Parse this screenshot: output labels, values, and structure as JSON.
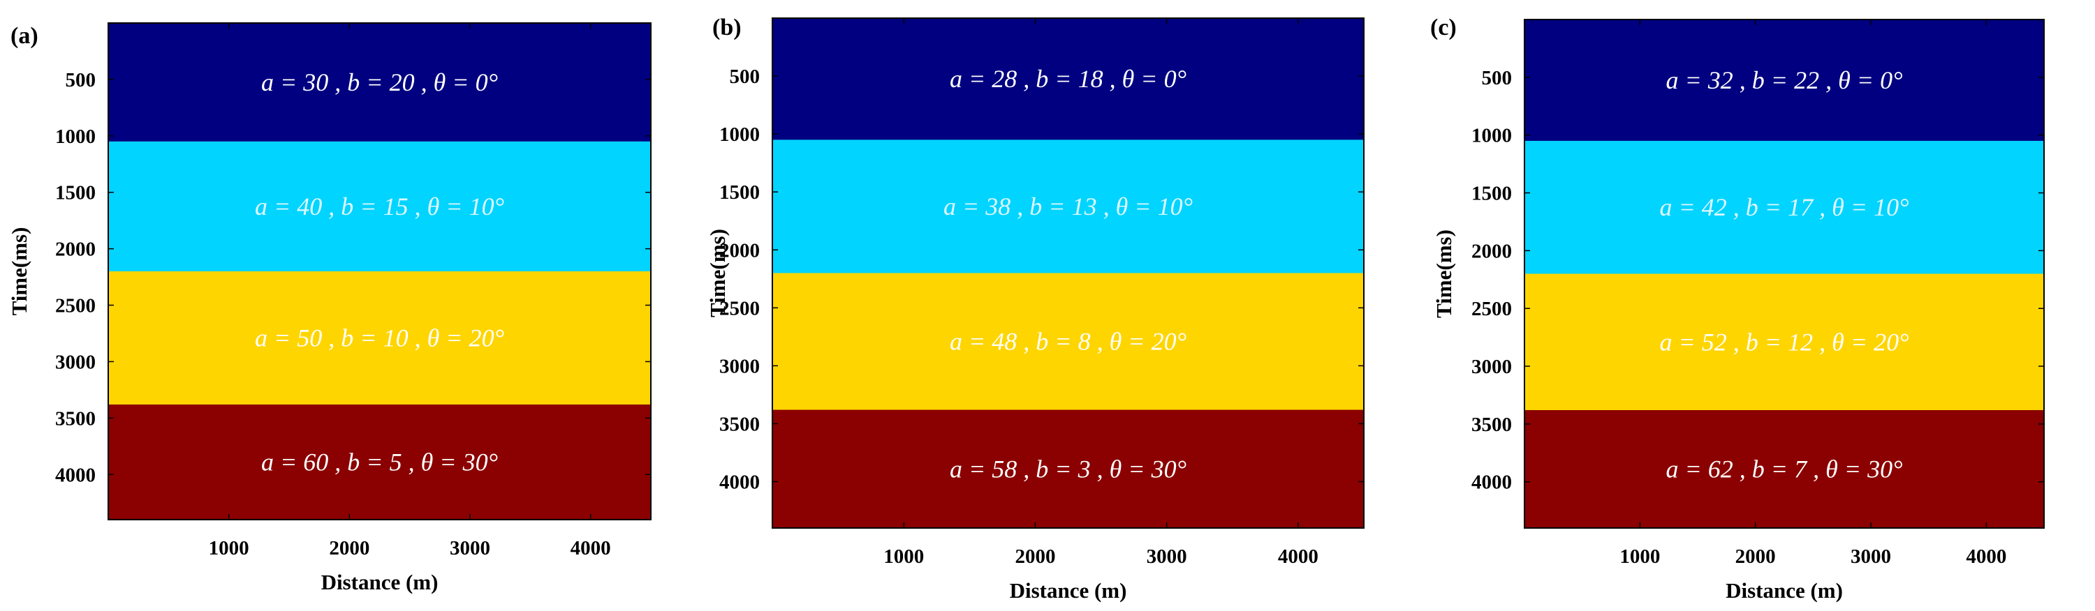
{
  "layer_colors": [
    "#000080",
    "#00D4FF",
    "#FFD500",
    "#8B0000"
  ],
  "text_color_default": "#ffffff",
  "text_color_light": "#e0f8ff",
  "panels": [
    {
      "label": "(a)",
      "xlabel": "Distance (m)",
      "ylabel": "Time(ms)",
      "xticks": [
        "1000",
        "2000",
        "3000",
        "4000"
      ],
      "yticks": [
        "500",
        "1000",
        "1500",
        "2000",
        "2500",
        "3000",
        "3500",
        "4000"
      ],
      "layers": [
        {
          "a": "30",
          "b": "20",
          "theta": "0"
        },
        {
          "a": "40",
          "b": "15",
          "theta": "10"
        },
        {
          "a": "50",
          "b": "10",
          "theta": "20"
        },
        {
          "a": "60",
          "b": "5",
          "theta": "30"
        }
      ]
    },
    {
      "label": "(b)",
      "xlabel": "Distance (m)",
      "ylabel": "Time(ms)",
      "xticks": [
        "1000",
        "2000",
        "3000",
        "4000"
      ],
      "yticks": [
        "500",
        "1000",
        "1500",
        "2000",
        "2500",
        "3000",
        "3500",
        "4000"
      ],
      "layers": [
        {
          "a": "28",
          "b": "18",
          "theta": "0"
        },
        {
          "a": "38",
          "b": "13",
          "theta": "10"
        },
        {
          "a": "48",
          "b": "8",
          "theta": "20"
        },
        {
          "a": "58",
          "b": "3",
          "theta": "30"
        }
      ]
    },
    {
      "label": "(c)",
      "xlabel": "Distance (m)",
      "ylabel": "Time(ms)",
      "xticks": [
        "1000",
        "2000",
        "3000",
        "4000"
      ],
      "yticks": [
        "500",
        "1000",
        "1500",
        "2000",
        "2500",
        "3000",
        "3500",
        "4000"
      ],
      "layers": [
        {
          "a": "32",
          "b": "22",
          "theta": "0"
        },
        {
          "a": "42",
          "b": "17",
          "theta": "10"
        },
        {
          "a": "52",
          "b": "12",
          "theta": "20"
        },
        {
          "a": "62",
          "b": "7",
          "theta": "30"
        }
      ]
    }
  ]
}
